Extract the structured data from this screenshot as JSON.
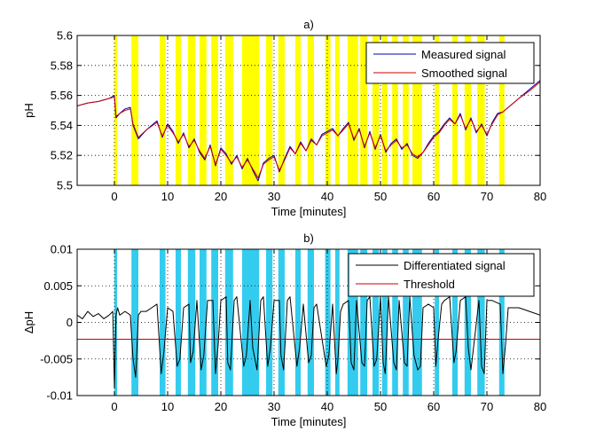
{
  "chart_data": [
    {
      "type": "line",
      "title": "a)",
      "xlabel": "Time [minutes]",
      "ylabel": "pH",
      "xlim": [
        -7,
        80
      ],
      "ylim": [
        5.5,
        5.6
      ],
      "xticks": [
        0,
        10,
        20,
        30,
        40,
        50,
        60,
        70,
        80
      ],
      "yticks": [
        5.5,
        5.52,
        5.54,
        5.56,
        5.58,
        5.6
      ],
      "ytick_labels": [
        "5.5",
        "5.52",
        "5.54",
        "5.56",
        "5.58",
        "5.6"
      ],
      "grid": "dotted",
      "legend_position": "top-right",
      "band_color": "#ffff00",
      "bands": [
        [
          0,
          0.5
        ],
        [
          3.2,
          4.5
        ],
        [
          8.5,
          9.6
        ],
        [
          11.5,
          12.5
        ],
        [
          13.8,
          15.2
        ],
        [
          16.0,
          17.3
        ],
        [
          18.2,
          19.5
        ],
        [
          20.8,
          22.3
        ],
        [
          24.0,
          27.2
        ],
        [
          28.5,
          29.7
        ],
        [
          30.8,
          32.0
        ],
        [
          34.0,
          35.0
        ],
        [
          36.3,
          37.5
        ],
        [
          39.6,
          40.6
        ],
        [
          41.5,
          42.3
        ],
        [
          43.8,
          45.8
        ],
        [
          46.2,
          47.5
        ],
        [
          48.5,
          49.7
        ],
        [
          50.3,
          51.3
        ],
        [
          52.2,
          53.3
        ],
        [
          54.2,
          55.3
        ],
        [
          56.0,
          57.8
        ],
        [
          60.2,
          61.0
        ],
        [
          63.5,
          64.5
        ],
        [
          65.8,
          67.0
        ],
        [
          68.2,
          69.6
        ],
        [
          72.3,
          73.3
        ]
      ],
      "series": [
        {
          "name": "Measured signal",
          "color": "#0000aa",
          "x": [
            -7,
            -5,
            -3,
            -1,
            0,
            0.3,
            1,
            2,
            3,
            3.5,
            4.5,
            6,
            8,
            9,
            10,
            11,
            12,
            13,
            14,
            15,
            16,
            17,
            18,
            19,
            20,
            21,
            22,
            23,
            24,
            25,
            26,
            27,
            28,
            29,
            30,
            31,
            32,
            33,
            34,
            35,
            36,
            37,
            38,
            39,
            40,
            41,
            42,
            43,
            44,
            45,
            46,
            47,
            48,
            49,
            50,
            51,
            52,
            53,
            54,
            55,
            56,
            57,
            58,
            59,
            60,
            61,
            62,
            63,
            64,
            65,
            66,
            67,
            68,
            69,
            70,
            71,
            72,
            73,
            74,
            76,
            78,
            80
          ],
          "y": [
            5.553,
            5.555,
            5.556,
            5.558,
            5.56,
            5.545,
            5.548,
            5.551,
            5.552,
            5.54,
            5.531,
            5.537,
            5.543,
            5.532,
            5.541,
            5.536,
            5.528,
            5.535,
            5.525,
            5.531,
            5.522,
            5.517,
            5.527,
            5.513,
            5.525,
            5.521,
            5.514,
            5.52,
            5.511,
            5.518,
            5.51,
            5.503,
            5.515,
            5.518,
            5.52,
            5.509,
            5.518,
            5.526,
            5.521,
            5.529,
            5.523,
            5.531,
            5.527,
            5.534,
            5.536,
            5.538,
            5.533,
            5.538,
            5.542,
            5.53,
            5.538,
            5.525,
            5.536,
            5.524,
            5.534,
            5.522,
            5.528,
            5.531,
            5.524,
            5.528,
            5.52,
            5.518,
            5.522,
            5.528,
            5.533,
            5.536,
            5.541,
            5.545,
            5.541,
            5.548,
            5.537,
            5.545,
            5.535,
            5.541,
            5.533,
            5.542,
            5.548,
            5.549,
            5.552,
            5.558,
            5.564,
            5.57
          ]
        },
        {
          "name": "Smoothed signal",
          "color": "#cc0000",
          "x": [
            -7,
            -5,
            -3,
            -1,
            0,
            0.3,
            1,
            2,
            3,
            3.5,
            4.5,
            6,
            8,
            9,
            10,
            11,
            12,
            13,
            14,
            15,
            16,
            17,
            18,
            19,
            20,
            21,
            22,
            23,
            24,
            25,
            26,
            27,
            28,
            29,
            30,
            31,
            32,
            33,
            34,
            35,
            36,
            37,
            38,
            39,
            40,
            41,
            42,
            43,
            44,
            45,
            46,
            47,
            48,
            49,
            50,
            51,
            52,
            53,
            54,
            55,
            56,
            57,
            58,
            59,
            60,
            61,
            62,
            63,
            64,
            65,
            66,
            67,
            68,
            69,
            70,
            71,
            72,
            73,
            74,
            76,
            78,
            80
          ],
          "y": [
            5.553,
            5.555,
            5.556,
            5.558,
            5.559,
            5.546,
            5.548,
            5.55,
            5.551,
            5.541,
            5.532,
            5.537,
            5.542,
            5.533,
            5.54,
            5.535,
            5.529,
            5.534,
            5.526,
            5.53,
            5.523,
            5.518,
            5.526,
            5.514,
            5.524,
            5.52,
            5.515,
            5.519,
            5.512,
            5.517,
            5.511,
            5.505,
            5.514,
            5.517,
            5.519,
            5.51,
            5.517,
            5.525,
            5.521,
            5.528,
            5.523,
            5.53,
            5.527,
            5.533,
            5.535,
            5.537,
            5.533,
            5.537,
            5.541,
            5.531,
            5.537,
            5.526,
            5.535,
            5.525,
            5.533,
            5.523,
            5.527,
            5.53,
            5.525,
            5.527,
            5.521,
            5.519,
            5.522,
            5.527,
            5.532,
            5.535,
            5.54,
            5.544,
            5.541,
            5.547,
            5.538,
            5.544,
            5.536,
            5.54,
            5.534,
            5.541,
            5.547,
            5.549,
            5.552,
            5.558,
            5.563,
            5.569
          ]
        }
      ]
    },
    {
      "type": "line",
      "title": "b)",
      "xlabel": "Time [minutes]",
      "ylabel": "ΔpH",
      "xlim": [
        -7,
        80
      ],
      "ylim": [
        -0.01,
        0.01
      ],
      "xticks": [
        0,
        10,
        20,
        30,
        40,
        50,
        60,
        70,
        80
      ],
      "yticks": [
        -0.01,
        -0.005,
        0,
        0.005,
        0.01
      ],
      "ytick_labels": [
        "-0.01",
        "-0.005",
        "0",
        "0.005",
        "0.01"
      ],
      "grid": "dotted",
      "legend_position": "top-right",
      "band_color": "#33ccee",
      "bands": [
        [
          0,
          0.5
        ],
        [
          3.2,
          4.5
        ],
        [
          8.5,
          9.6
        ],
        [
          11.5,
          12.5
        ],
        [
          13.8,
          15.2
        ],
        [
          16.0,
          17.3
        ],
        [
          18.2,
          19.5
        ],
        [
          20.8,
          22.3
        ],
        [
          24.0,
          27.2
        ],
        [
          28.5,
          29.7
        ],
        [
          30.8,
          32.0
        ],
        [
          34.0,
          35.0
        ],
        [
          36.3,
          37.5
        ],
        [
          39.6,
          40.6
        ],
        [
          41.5,
          42.3
        ],
        [
          43.8,
          45.8
        ],
        [
          46.2,
          47.5
        ],
        [
          48.5,
          49.7
        ],
        [
          50.3,
          51.3
        ],
        [
          52.2,
          53.3
        ],
        [
          54.2,
          55.3
        ],
        [
          56.0,
          57.8
        ],
        [
          60.2,
          61.0
        ],
        [
          63.5,
          64.5
        ],
        [
          65.8,
          67.0
        ],
        [
          68.2,
          69.6
        ],
        [
          72.3,
          73.3
        ]
      ],
      "series": [
        {
          "name": "Differentiated signal",
          "color": "#000000",
          "x": [
            -7,
            -6,
            -5,
            -4,
            -3,
            -2,
            -1,
            -0.3,
            0,
            0.3,
            0.6,
            1,
            2,
            3,
            3.5,
            4,
            4.5,
            5,
            6,
            7,
            8,
            8.8,
            9.3,
            10,
            11,
            11.8,
            12.3,
            13,
            14,
            14.3,
            14.8,
            15.5,
            16.3,
            16.8,
            17.5,
            18.5,
            19,
            19.5,
            20,
            21,
            21.3,
            21.8,
            22.5,
            23,
            24.3,
            24.8,
            25.5,
            26,
            26.8,
            27.5,
            28,
            28.8,
            29.3,
            30,
            31,
            31.3,
            31.8,
            32.5,
            33,
            34.3,
            34.8,
            35.5,
            36.5,
            37,
            37.5,
            38,
            39.8,
            40.3,
            41,
            41.7,
            42,
            42.5,
            43,
            44,
            44.5,
            45,
            45.5,
            46.5,
            47,
            47.5,
            48,
            48.8,
            49.3,
            50,
            50.5,
            50.9,
            51.5,
            52.5,
            53,
            53.5,
            54.5,
            55,
            55.5,
            56.3,
            57,
            57.5,
            58,
            59,
            60,
            60.4,
            60.8,
            61.5,
            62,
            63,
            63.8,
            64.2,
            65,
            66,
            66.5,
            67,
            68.5,
            69,
            69.5,
            70,
            71,
            72.5,
            73,
            73.5,
            74,
            76,
            78,
            80
          ],
          "y": [
            0.001,
            0.0005,
            0.0015,
            0.0008,
            0.0012,
            0.0005,
            0.001,
            0.0015,
            -0.009,
            0.001,
            0.002,
            0.001,
            0.0015,
            0.001,
            -0.005,
            -0.0075,
            0.001,
            0.0015,
            0.0015,
            0.002,
            0.0025,
            -0.007,
            -0.004,
            0.002,
            0.0015,
            -0.006,
            -0.005,
            0.002,
            0.0025,
            -0.0055,
            -0.004,
            0.003,
            -0.0065,
            -0.0045,
            0.003,
            0.003,
            -0.007,
            -0.003,
            0.003,
            0.0035,
            -0.0055,
            -0.0065,
            0.003,
            0.0035,
            -0.006,
            -0.0045,
            0.003,
            -0.0035,
            -0.0065,
            0.003,
            0.0035,
            -0.006,
            -0.0035,
            0.003,
            0.003,
            -0.0045,
            -0.0065,
            0.003,
            0.0035,
            -0.006,
            -0.0035,
            0.0025,
            -0.0055,
            -0.0045,
            0.002,
            0.0025,
            -0.006,
            -0.0045,
            0.0025,
            -0.007,
            -0.005,
            0.0015,
            0.0025,
            0.003,
            -0.0055,
            -0.0065,
            0.003,
            -0.0055,
            -0.006,
            0.003,
            0.0035,
            -0.006,
            -0.005,
            0.0035,
            -0.0055,
            -0.007,
            0.0035,
            -0.0055,
            -0.0065,
            0.003,
            -0.0055,
            -0.006,
            0.0035,
            -0.0045,
            -0.0065,
            -0.006,
            0.002,
            0.0025,
            0.002,
            -0.006,
            -0.0025,
            0.0025,
            0.003,
            0.0035,
            -0.0055,
            -0.004,
            0.003,
            0.0035,
            -0.0035,
            -0.0065,
            0.003,
            -0.006,
            -0.007,
            0.003,
            0.003,
            0.0025,
            -0.007,
            -0.003,
            0.002,
            0.002,
            0.0015,
            0.001
          ]
        },
        {
          "name": "Threshold",
          "color": "#cc0000",
          "x": [
            -7,
            80
          ],
          "y": [
            -0.0023,
            -0.0023
          ]
        }
      ]
    }
  ]
}
